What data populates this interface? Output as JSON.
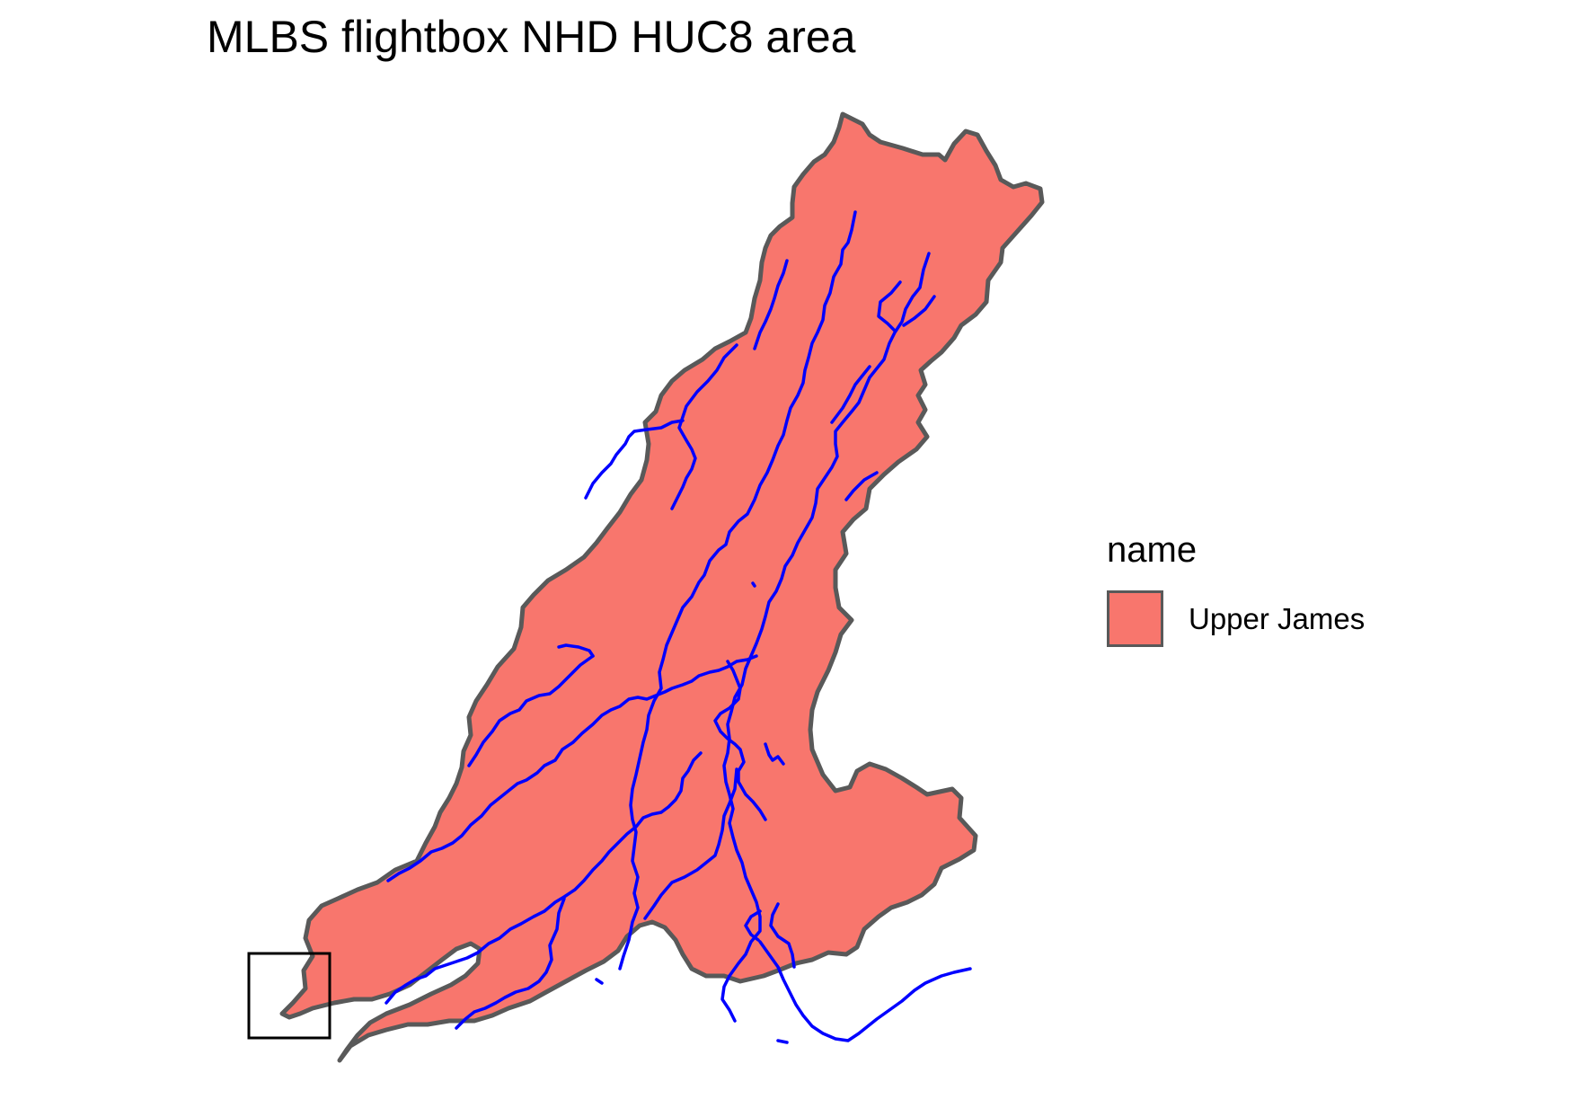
{
  "map": {
    "title": "MLBS flightbox NHD HUC8 area",
    "legend": {
      "title": "name",
      "items": [
        {
          "label": "Upper James",
          "fill": "#F8766D",
          "border": "#595959"
        }
      ]
    },
    "colors": {
      "watershed_fill": "#F8766D",
      "watershed_border": "#595959",
      "river": "#0000FF",
      "flightbox": "#000000",
      "background": "#FFFFFF"
    }
  }
}
